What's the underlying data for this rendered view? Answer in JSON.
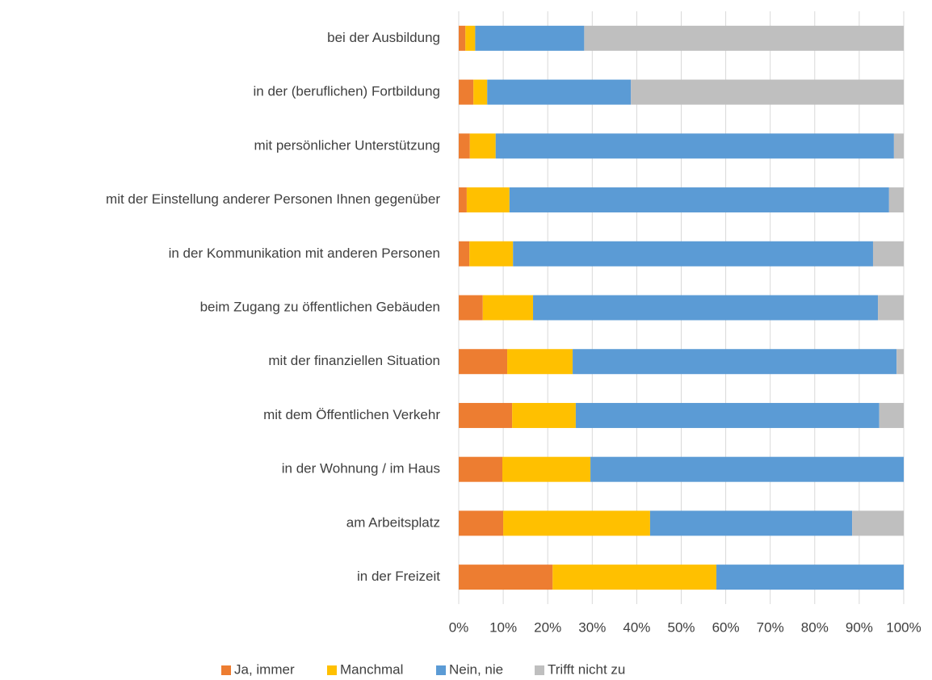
{
  "chart_data": {
    "type": "stacked_barh",
    "categories": [
      "bei der Ausbildung",
      "in der (beruflichen) Fortbildung",
      "mit persönlicher Unterstützung",
      "mit der Einstellung anderer Personen Ihnen gegenüber",
      "in der Kommunikation mit anderen Personen",
      "beim Zugang zu öffentlichen Gebäuden",
      "mit der finanziellen Situation",
      "mit dem Öffentlichen Verkehr",
      "in der Wohnung / im Haus",
      "am Arbeitsplatz",
      "in der Freizeit"
    ],
    "series": [
      {
        "name": "Ja, immer",
        "color": "#ed7d31",
        "values": [
          1.5,
          3.3,
          2.5,
          1.8,
          2.4,
          5.4,
          10.9,
          12,
          9.8,
          10,
          21.1
        ]
      },
      {
        "name": "Manchmal",
        "color": "#ffc000",
        "values": [
          2.2,
          3.1,
          5.8,
          9.6,
          9.8,
          11.3,
          14.7,
          14.3,
          19.8,
          33,
          36.8
        ]
      },
      {
        "name": "Nein, nie",
        "color": "#5b9bd5",
        "values": [
          24.5,
          32.3,
          89.5,
          85.3,
          80.9,
          77.5,
          72.8,
          68.2,
          70.4,
          45.4,
          42.1
        ]
      },
      {
        "name": "Trifft nicht zu",
        "color": "#bfbfbf",
        "values": [
          71.8,
          61.3,
          2.2,
          3.3,
          6.9,
          5.8,
          1.6,
          5.5,
          0,
          11.6,
          0
        ]
      }
    ],
    "xlim": [
      0,
      100
    ],
    "xticks": [
      {
        "value": 0,
        "label": "0%"
      },
      {
        "value": 10,
        "label": "10%"
      },
      {
        "value": 20,
        "label": "20%"
      },
      {
        "value": 30,
        "label": "30%"
      },
      {
        "value": 40,
        "label": "40%"
      },
      {
        "value": 50,
        "label": "50%"
      },
      {
        "value": 60,
        "label": "60%"
      },
      {
        "value": 70,
        "label": "70%"
      },
      {
        "value": 80,
        "label": "80%"
      },
      {
        "value": 90,
        "label": "90%"
      },
      {
        "value": 100,
        "label": "100%"
      }
    ],
    "grid": true,
    "legend": "bottom"
  }
}
